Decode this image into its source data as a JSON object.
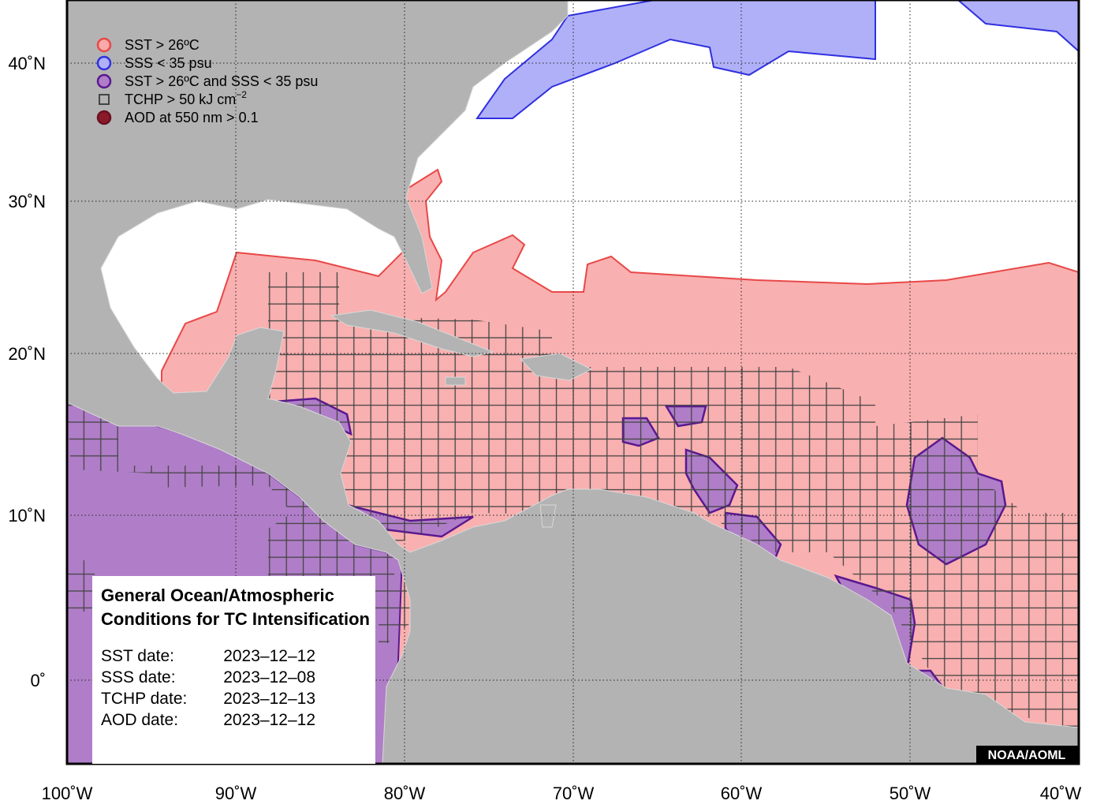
{
  "legend": [
    {
      "label": "SST > 26ºC",
      "marker": "circle",
      "fill": "#f9a9a9",
      "stroke": "#e84848"
    },
    {
      "label": "SSS < 35 psu",
      "marker": "circle",
      "fill": "#b0b0f8",
      "stroke": "#3030e0"
    },
    {
      "label": "SST > 26ºC and SSS < 35 psu",
      "marker": "circle",
      "fill": "#b07ec8",
      "stroke": "#5a1890"
    },
    {
      "label": "TCHP > 50 kJ cm",
      "sup": "−2",
      "marker": "square",
      "fill": "none",
      "stroke": "#444444"
    },
    {
      "label": "AOD at 550 nm > 0.1",
      "marker": "circle",
      "fill": "#8a1a2a",
      "stroke": "#6a1020"
    }
  ],
  "info_box": {
    "title_lines": [
      "General Ocean/Atmospheric",
      "Conditions for TC Intensification"
    ],
    "dates": [
      {
        "label": "SST date:",
        "value": "2023–12–12"
      },
      {
        "label": "SSS date:",
        "value": "2023–12–08"
      },
      {
        "label": "TCHP date:",
        "value": "2023–12–13"
      },
      {
        "label": "AOD date:",
        "value": "2023–12–12"
      }
    ]
  },
  "credit": "NOAA/AOML",
  "lon_labels": [
    "100˚W",
    "90˚W",
    "80˚W",
    "70˚W",
    "60˚W",
    "50˚W",
    "40˚W"
  ],
  "lat_labels": [
    "40˚N",
    "30˚N",
    "20˚N",
    "10˚N",
    "0˚"
  ]
}
